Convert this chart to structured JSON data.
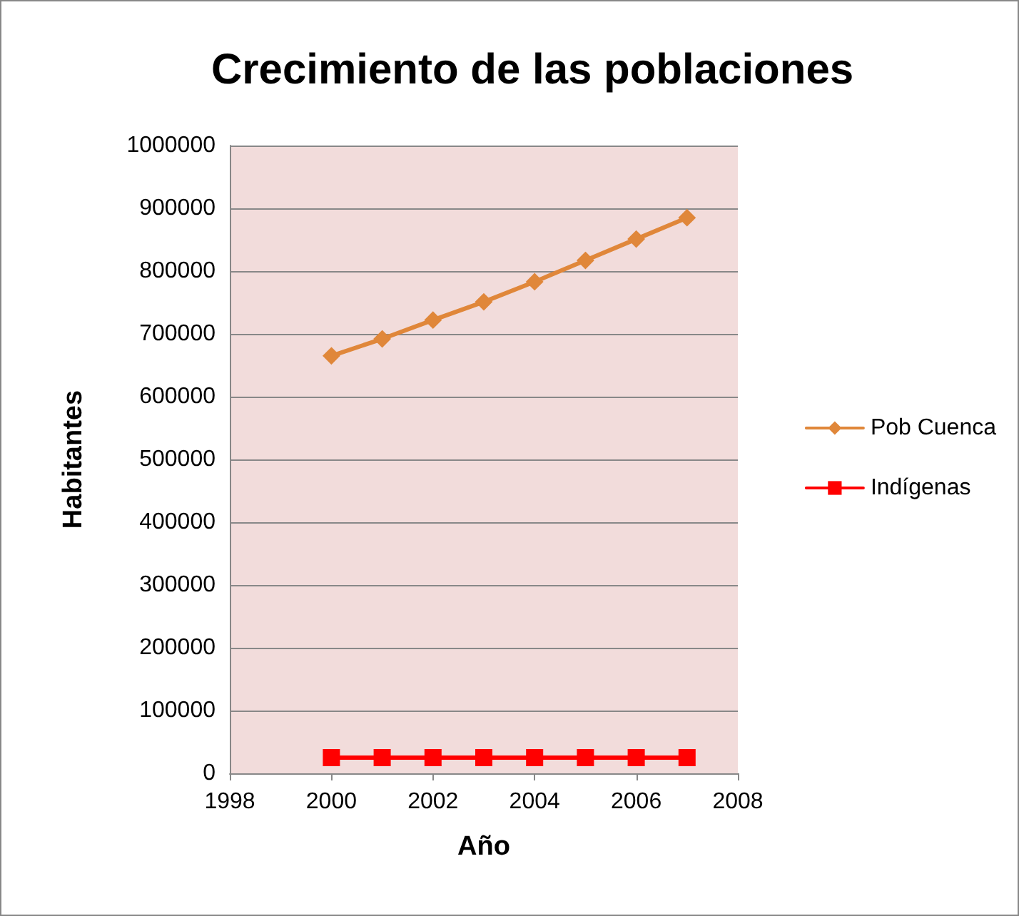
{
  "chart_data": {
    "type": "line",
    "title": "Crecimiento de las poblaciones",
    "xlabel": "Año",
    "ylabel": "Habitantes",
    "x": [
      2000,
      2001,
      2002,
      2003,
      2004,
      2005,
      2006,
      2007
    ],
    "series": [
      {
        "name": "Pob Cuenca",
        "color": "#e0873a",
        "marker": "diamond",
        "values": [
          665000,
          692000,
          722000,
          751000,
          783000,
          817000,
          851000,
          885000
        ]
      },
      {
        "name": "Indígenas",
        "color": "#ff0000",
        "marker": "square",
        "values": [
          25000,
          25000,
          25000,
          25000,
          25000,
          25000,
          25000,
          25000
        ]
      }
    ],
    "xlim": [
      1998,
      2008
    ],
    "xticks": [
      1998,
      2000,
      2002,
      2004,
      2006,
      2008
    ],
    "ylim": [
      0,
      1000000
    ],
    "yticks": [
      0,
      100000,
      200000,
      300000,
      400000,
      500000,
      600000,
      700000,
      800000,
      900000,
      1000000
    ],
    "grid": "y",
    "legend": "right",
    "line_style": "solid"
  }
}
